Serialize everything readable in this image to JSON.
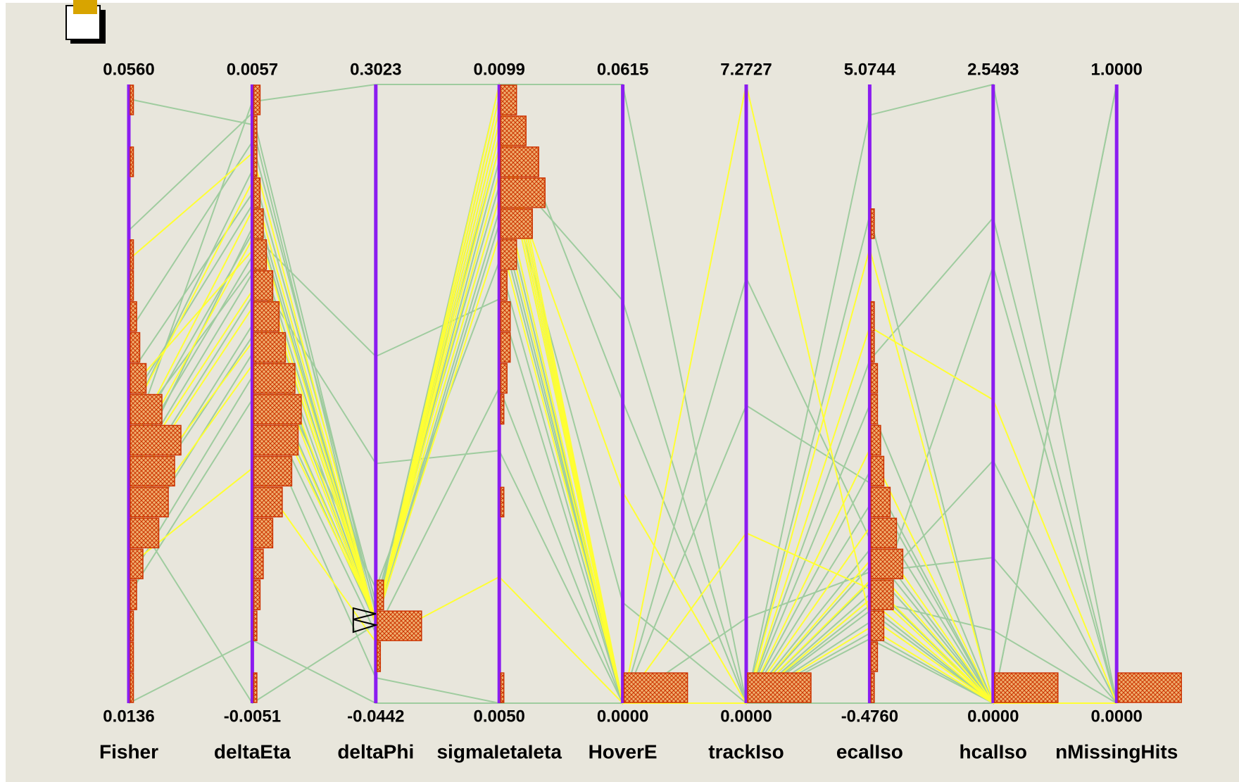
{
  "chart_data": {
    "type": "parallel",
    "axis_color": "#8b1cf0",
    "hist_color": "#cc3300",
    "axes": [
      {
        "name": "Fisher",
        "min": {
          "value": 0.0136,
          "label": "0.0136"
        },
        "max": {
          "value": 0.056,
          "label": "0.0560"
        },
        "hist": [
          1,
          1,
          1,
          2,
          4,
          9,
          12,
          14,
          16,
          10,
          5,
          3,
          2,
          1,
          1,
          0,
          0,
          1,
          0,
          1
        ]
      },
      {
        "name": "deltaEta",
        "min": {
          "value": -0.0051,
          "label": "-0.0051"
        },
        "max": {
          "value": 0.0057,
          "label": "0.0057"
        },
        "hist": [
          1,
          0,
          1,
          2,
          3,
          6,
          9,
          12,
          14,
          15,
          13,
          10,
          8,
          6,
          4,
          3,
          2,
          1,
          1,
          2
        ]
      },
      {
        "name": "deltaPhi",
        "min": {
          "value": -0.0442,
          "label": "-0.0442"
        },
        "max": {
          "value": 0.3023,
          "label": "0.3023"
        },
        "hist": [
          0,
          1,
          14,
          2,
          0,
          0,
          0,
          0,
          0,
          0,
          0,
          0,
          0,
          0,
          0,
          0,
          0,
          0,
          0,
          0
        ]
      },
      {
        "name": "sigmaIetaIeta",
        "min": {
          "value": 0.005,
          "label": "0.0050"
        },
        "max": {
          "value": 0.0099,
          "label": "0.0099"
        },
        "hist": [
          1,
          0,
          0,
          0,
          0,
          0,
          1,
          0,
          0,
          1,
          2,
          3,
          3,
          2,
          5,
          10,
          14,
          12,
          8,
          5
        ]
      },
      {
        "name": "HoverE",
        "min": {
          "value": 0,
          "label": "0.0000"
        },
        "max": {
          "value": 0.0615,
          "label": "0.0615"
        },
        "hist": [
          20,
          0,
          0,
          0,
          0,
          0,
          0,
          0,
          0,
          0,
          0,
          0,
          0,
          0,
          0,
          0,
          0,
          0,
          0,
          0
        ]
      },
      {
        "name": "trackIso",
        "min": {
          "value": 0,
          "label": "0.0000"
        },
        "max": {
          "value": 7.2727,
          "label": "7.2727"
        },
        "hist": [
          20,
          0,
          0,
          0,
          0,
          0,
          0,
          0,
          0,
          0,
          0,
          0,
          0,
          0,
          0,
          0,
          0,
          0,
          0,
          0
        ]
      },
      {
        "name": "ecalIso",
        "min": {
          "value": -0.476,
          "label": "-0.4760"
        },
        "max": {
          "value": 5.0744,
          "label": "5.0744"
        },
        "hist": [
          1,
          2,
          4,
          7,
          10,
          8,
          6,
          4,
          3,
          2,
          2,
          1,
          1,
          0,
          0,
          1,
          0,
          0,
          0,
          0
        ]
      },
      {
        "name": "hcalIso",
        "min": {
          "value": 0,
          "label": "0.0000"
        },
        "max": {
          "value": 2.5493,
          "label": "2.5493"
        },
        "hist": [
          20,
          0,
          0,
          0,
          0,
          0,
          0,
          0,
          0,
          0,
          0,
          0,
          0,
          0,
          0,
          0,
          0,
          0,
          0,
          0
        ]
      },
      {
        "name": "nMissingHits",
        "min": {
          "value": 0,
          "label": "0.0000"
        },
        "max": {
          "value": 1,
          "label": "1.0000"
        },
        "hist": [
          20,
          0,
          0,
          0,
          0,
          0,
          0,
          0,
          0,
          0,
          0,
          0,
          0,
          0,
          0,
          0,
          0,
          0,
          0,
          0
        ]
      }
    ],
    "records": [
      {
        "color": "#9fcc9f",
        "values": [
          0.055,
          0.005,
          0.001,
          0.0098,
          0,
          0,
          0.4,
          0,
          0
        ]
      },
      {
        "color": "#9fcc9f",
        "values": [
          0.031,
          0.0054,
          0.3023,
          0.0099,
          0.0615,
          0,
          4.8,
          2.5493,
          0
        ]
      },
      {
        "color": "#9fcc9f",
        "values": [
          0.026,
          0.0015,
          0.02,
          0.0085,
          0,
          0,
          0.9,
          0,
          1
        ]
      },
      {
        "color": "#9fcc9f",
        "values": [
          0.032,
          0.0025,
          0.09,
          0.007,
          0,
          3.5,
          1.5,
          0,
          0
        ]
      },
      {
        "color": "#9fcc9f",
        "values": [
          0.029,
          0.0032,
          0.001,
          0.0093,
          0.04,
          0,
          0.25,
          1.8,
          0
        ]
      },
      {
        "color": "#9fcc9f",
        "values": [
          0.024,
          0.001,
          0.0005,
          0.0089,
          0,
          0,
          0.6,
          0,
          0
        ]
      },
      {
        "color": "#9fcc9f",
        "values": [
          0.036,
          0.0038,
          0,
          0.0096,
          0,
          0,
          2.2,
          0,
          0
        ]
      },
      {
        "color": "#9fcc9f",
        "values": [
          0.021,
          0.0002,
          -0.03,
          0.005,
          0,
          0,
          0.1,
          0,
          0
        ]
      },
      {
        "color": "#9fcc9f",
        "values": [
          0.033,
          0.0042,
          0.008,
          0.0091,
          0,
          1,
          0.7,
          0.6,
          0
        ]
      },
      {
        "color": "#9fcc9f",
        "values": [
          0.028,
          0.002,
          0.0015,
          0.0098,
          0,
          0,
          1.3,
          0,
          0
        ]
      },
      {
        "color": "#9fcc9f",
        "values": [
          0.027,
          -0.0051,
          0,
          0.0088,
          0,
          0,
          0.35,
          0,
          0
        ]
      },
      {
        "color": "#9fcc9f",
        "values": [
          0.039,
          0.0047,
          0.012,
          0.0094,
          0.01,
          0,
          3.9,
          0,
          0
        ]
      },
      {
        "color": "#9fcc9f",
        "values": [
          0.022,
          0.0006,
          -0.005,
          0.0075,
          0,
          0,
          0.5,
          1,
          0
        ]
      },
      {
        "color": "#9fcc9f",
        "values": [
          0.03,
          0.0027,
          0.003,
          0.009,
          0,
          0,
          0.75,
          0,
          1
        ]
      },
      {
        "color": "#9fcc9f",
        "values": [
          0.034,
          0.0036,
          0.001,
          0.0097,
          0,
          5,
          1,
          0,
          0
        ]
      },
      {
        "color": "#9fcc9f",
        "values": [
          0.0136,
          -0.004,
          -0.0442,
          0.005,
          0,
          0,
          -0.476,
          0,
          0
        ]
      },
      {
        "color": "#9fcc9f",
        "values": [
          0.046,
          0.0052,
          0.006,
          0.0099,
          0.03,
          0,
          2.6,
          2,
          0
        ]
      },
      {
        "color": "#9fcc9f",
        "values": [
          0.026,
          0.0013,
          0.002,
          0.0092,
          0,
          0,
          0.15,
          0,
          0
        ]
      },
      {
        "color": "#9fcc9f",
        "values": [
          0.031,
          0.0031,
          0.15,
          0.0082,
          0,
          0,
          1.6,
          0,
          0
        ]
      },
      {
        "color": "#9fcc9f",
        "values": [
          0.029,
          0.0024,
          0.001,
          0.0095,
          0,
          0,
          0.45,
          0.3,
          0
        ]
      },
      {
        "color": "#ffff33",
        "values": [
          0.029,
          0.0021,
          0.0012,
          0.0098,
          0,
          0,
          0.45,
          0,
          0
        ]
      },
      {
        "color": "#ffff33",
        "values": [
          0.031,
          0.0035,
          0.0005,
          0.0095,
          0,
          0,
          0.62,
          0,
          0
        ]
      },
      {
        "color": "#ffff33",
        "values": [
          0.027,
          0.0012,
          0.002,
          0.0092,
          0,
          0,
          1.8,
          0,
          0
        ]
      },
      {
        "color": "#ffff33",
        "values": [
          0.033,
          0.004,
          0.001,
          0.0099,
          0,
          7.2727,
          0.3,
          0,
          0
        ]
      },
      {
        "color": "#ffff33",
        "values": [
          0.025,
          0.0008,
          0.003,
          0.009,
          0,
          0,
          2.9,
          1.25,
          0
        ]
      },
      {
        "color": "#ffff33",
        "values": [
          0.035,
          0.0028,
          0.0008,
          0.0087,
          0,
          0,
          0.8,
          0,
          0
        ]
      },
      {
        "color": "#ffff33",
        "values": [
          0.023,
          -0.001,
          -0.01,
          0.006,
          0,
          0,
          0.2,
          0,
          0
        ]
      },
      {
        "color": "#ffff33",
        "values": [
          0.044,
          0.0045,
          0.0015,
          0.0096,
          0,
          0,
          1.1,
          0,
          0
        ]
      },
      {
        "color": "#ffff33",
        "values": [
          0.028,
          0.0018,
          0.0002,
          0.0094,
          0.021,
          0,
          3.6,
          0,
          0
        ]
      },
      {
        "color": "#ffff33",
        "values": [
          0.03,
          0.003,
          0.0025,
          0.0097,
          0,
          2,
          0.55,
          0,
          0
        ]
      }
    ]
  }
}
